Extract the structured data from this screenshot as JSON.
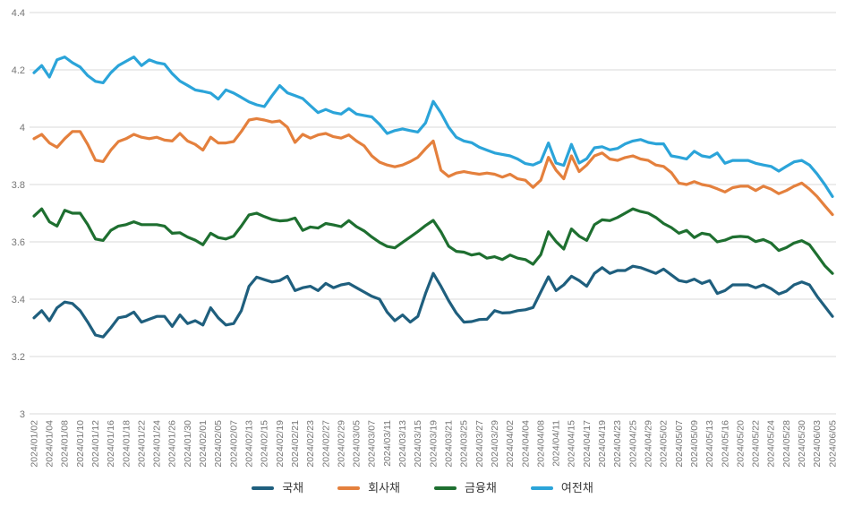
{
  "chart_data": {
    "type": "line",
    "title": "",
    "xlabel": "",
    "ylabel": "",
    "ylim": [
      3,
      4.4
    ],
    "y_ticks": [
      4.4,
      4.2,
      4.0,
      3.8,
      3.6,
      3.4,
      3.2,
      3.0
    ],
    "y_tick_labels": [
      "4.4",
      "4.2",
      "4",
      "3.8",
      "3.6",
      "3.4",
      "3.2",
      "3"
    ],
    "grid": "horizontal",
    "legend_position": "bottom",
    "x_tick_every": 2,
    "x": [
      "2024/01/02",
      "2024/01/03",
      "2024/01/04",
      "2024/01/05",
      "2024/01/08",
      "2024/01/09",
      "2024/01/10",
      "2024/01/11",
      "2024/01/12",
      "2024/01/15",
      "2024/01/16",
      "2024/01/17",
      "2024/01/18",
      "2024/01/19",
      "2024/01/22",
      "2024/01/23",
      "2024/01/24",
      "2024/01/25",
      "2024/01/26",
      "2024/01/29",
      "2024/01/30",
      "2024/01/31",
      "2024/02/01",
      "2024/02/02",
      "2024/02/05",
      "2024/02/06",
      "2024/02/07",
      "2024/02/08",
      "2024/02/13",
      "2024/02/14",
      "2024/02/15",
      "2024/02/16",
      "2024/02/19",
      "2024/02/20",
      "2024/02/21",
      "2024/02/22",
      "2024/02/23",
      "2024/02/26",
      "2024/02/27",
      "2024/02/28",
      "2024/02/29",
      "2024/03/04",
      "2024/03/05",
      "2024/03/06",
      "2024/03/07",
      "2024/03/08",
      "2024/03/11",
      "2024/03/12",
      "2024/03/13",
      "2024/03/14",
      "2024/03/15",
      "2024/03/18",
      "2024/03/19",
      "2024/03/20",
      "2024/03/21",
      "2024/03/22",
      "2024/03/25",
      "2024/03/26",
      "2024/03/27",
      "2024/03/28",
      "2024/03/29",
      "2024/04/01",
      "2024/04/02",
      "2024/04/03",
      "2024/04/04",
      "2024/04/05",
      "2024/04/08",
      "2024/04/09",
      "2024/04/11",
      "2024/04/12",
      "2024/04/15",
      "2024/04/16",
      "2024/04/17",
      "2024/04/18",
      "2024/04/19",
      "2024/04/22",
      "2024/04/23",
      "2024/04/24",
      "2024/04/25",
      "2024/04/26",
      "2024/04/29",
      "2024/04/30",
      "2024/05/02",
      "2024/05/03",
      "2024/05/07",
      "2024/05/08",
      "2024/05/09",
      "2024/05/10",
      "2024/05/13",
      "2024/05/14",
      "2024/05/16",
      "2024/05/17",
      "2024/05/20",
      "2024/05/21",
      "2024/05/22",
      "2024/05/23",
      "2024/05/24",
      "2024/05/27",
      "2024/05/28",
      "2024/05/29",
      "2024/05/30",
      "2024/05/31",
      "2024/06/03",
      "2024/06/04",
      "2024/06/05"
    ],
    "series": [
      {
        "name": "국채",
        "color": "#1f5f7e",
        "values": [
          3.335,
          3.36,
          3.325,
          3.37,
          3.39,
          3.385,
          3.36,
          3.32,
          3.275,
          3.268,
          3.3,
          3.335,
          3.34,
          3.355,
          3.32,
          3.33,
          3.34,
          3.34,
          3.305,
          3.345,
          3.315,
          3.325,
          3.31,
          3.37,
          3.335,
          3.31,
          3.315,
          3.36,
          3.445,
          3.477,
          3.468,
          3.46,
          3.465,
          3.48,
          3.43,
          3.44,
          3.445,
          3.43,
          3.455,
          3.44,
          3.45,
          3.455,
          3.44,
          3.425,
          3.41,
          3.4,
          3.355,
          3.325,
          3.345,
          3.32,
          3.34,
          3.42,
          3.49,
          3.445,
          3.395,
          3.352,
          3.32,
          3.322,
          3.329,
          3.33,
          3.36,
          3.352,
          3.353,
          3.36,
          3.363,
          3.371,
          3.425,
          3.478,
          3.43,
          3.45,
          3.48,
          3.465,
          3.445,
          3.49,
          3.51,
          3.49,
          3.5,
          3.5,
          3.515,
          3.51,
          3.5,
          3.49,
          3.505,
          3.485,
          3.465,
          3.46,
          3.47,
          3.455,
          3.465,
          3.42,
          3.43,
          3.45,
          3.45,
          3.45,
          3.44,
          3.45,
          3.437,
          3.418,
          3.428,
          3.45,
          3.46,
          3.45,
          3.41,
          3.375,
          3.34
        ]
      },
      {
        "name": "회사채",
        "color": "#e4803d",
        "values": [
          3.96,
          3.975,
          3.945,
          3.93,
          3.96,
          3.985,
          3.985,
          3.94,
          3.885,
          3.88,
          3.92,
          3.95,
          3.96,
          3.975,
          3.965,
          3.96,
          3.965,
          3.955,
          3.952,
          3.978,
          3.952,
          3.94,
          3.92,
          3.965,
          3.945,
          3.945,
          3.95,
          3.985,
          4.025,
          4.03,
          4.025,
          4.018,
          4.022,
          4.0,
          3.947,
          3.975,
          3.962,
          3.973,
          3.978,
          3.967,
          3.962,
          3.973,
          3.952,
          3.935,
          3.9,
          3.878,
          3.868,
          3.862,
          3.868,
          3.88,
          3.895,
          3.925,
          3.952,
          3.85,
          3.828,
          3.84,
          3.845,
          3.84,
          3.836,
          3.84,
          3.836,
          3.826,
          3.836,
          3.82,
          3.815,
          3.79,
          3.815,
          3.895,
          3.85,
          3.82,
          3.9,
          3.845,
          3.868,
          3.9,
          3.91,
          3.889,
          3.884,
          3.894,
          3.9,
          3.889,
          3.884,
          3.868,
          3.863,
          3.842,
          3.805,
          3.8,
          3.81,
          3.8,
          3.795,
          3.785,
          3.774,
          3.789,
          3.794,
          3.794,
          3.779,
          3.794,
          3.784,
          3.768,
          3.779,
          3.794,
          3.805,
          3.784,
          3.758,
          3.726,
          3.695
        ]
      },
      {
        "name": "금융채",
        "color": "#1e6f30",
        "values": [
          3.69,
          3.715,
          3.67,
          3.655,
          3.71,
          3.7,
          3.7,
          3.66,
          3.61,
          3.605,
          3.64,
          3.655,
          3.66,
          3.67,
          3.66,
          3.66,
          3.66,
          3.655,
          3.63,
          3.632,
          3.617,
          3.606,
          3.59,
          3.63,
          3.615,
          3.61,
          3.62,
          3.655,
          3.694,
          3.7,
          3.688,
          3.678,
          3.673,
          3.675,
          3.683,
          3.64,
          3.652,
          3.648,
          3.664,
          3.659,
          3.653,
          3.674,
          3.653,
          3.638,
          3.617,
          3.598,
          3.584,
          3.579,
          3.598,
          3.617,
          3.636,
          3.657,
          3.675,
          3.635,
          3.585,
          3.567,
          3.564,
          3.554,
          3.559,
          3.543,
          3.548,
          3.538,
          3.554,
          3.543,
          3.538,
          3.522,
          3.555,
          3.635,
          3.601,
          3.575,
          3.645,
          3.62,
          3.605,
          3.66,
          3.677,
          3.674,
          3.685,
          3.7,
          3.715,
          3.706,
          3.7,
          3.685,
          3.664,
          3.65,
          3.63,
          3.64,
          3.615,
          3.63,
          3.625,
          3.6,
          3.606,
          3.617,
          3.619,
          3.617,
          3.601,
          3.608,
          3.596,
          3.57,
          3.58,
          3.596,
          3.604,
          3.59,
          3.554,
          3.517,
          3.49
        ]
      },
      {
        "name": "여전채",
        "color": "#2ba4d9",
        "values": [
          4.19,
          4.215,
          4.175,
          4.235,
          4.245,
          4.225,
          4.21,
          4.18,
          4.16,
          4.155,
          4.19,
          4.215,
          4.23,
          4.245,
          4.215,
          4.235,
          4.225,
          4.22,
          4.187,
          4.161,
          4.146,
          4.13,
          4.125,
          4.119,
          4.098,
          4.13,
          4.119,
          4.104,
          4.088,
          4.078,
          4.072,
          4.11,
          4.145,
          4.12,
          4.11,
          4.1,
          4.075,
          4.051,
          4.062,
          4.051,
          4.046,
          4.065,
          4.046,
          4.041,
          4.036,
          4.01,
          3.978,
          3.988,
          3.994,
          3.988,
          3.983,
          4.015,
          4.09,
          4.05,
          4.0,
          3.965,
          3.952,
          3.946,
          3.93,
          3.92,
          3.91,
          3.905,
          3.9,
          3.889,
          3.873,
          3.868,
          3.88,
          3.945,
          3.875,
          3.867,
          3.94,
          3.875,
          3.89,
          3.928,
          3.932,
          3.921,
          3.926,
          3.942,
          3.952,
          3.957,
          3.947,
          3.942,
          3.942,
          3.9,
          3.895,
          3.889,
          3.916,
          3.9,
          3.895,
          3.91,
          3.874,
          3.884,
          3.884,
          3.884,
          3.874,
          3.868,
          3.863,
          3.847,
          3.863,
          3.879,
          3.884,
          3.868,
          3.837,
          3.8,
          3.758
        ]
      }
    ]
  },
  "styles": {
    "background": "#ffffff",
    "grid_color": "#d9d9d9",
    "axis_label_color": "#767676",
    "legend_text_color": "#3a3a3a",
    "line_width": 3.2
  },
  "legend": {
    "items": [
      {
        "label": "국채"
      },
      {
        "label": "회사채"
      },
      {
        "label": "금융채"
      },
      {
        "label": "여전채"
      }
    ]
  }
}
